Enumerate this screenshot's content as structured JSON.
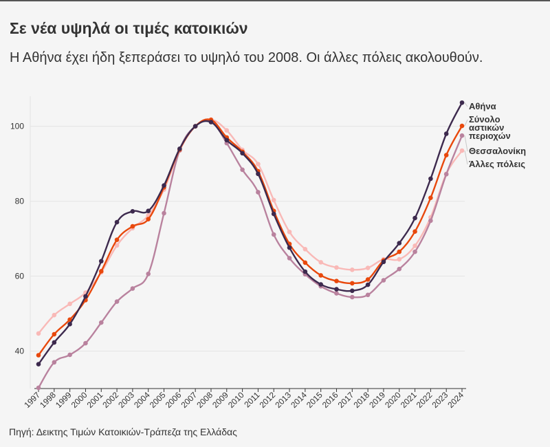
{
  "title": "Σε νέα υψηλά οι τιμές κατοικιών",
  "subtitle": "Η Αθήνα έχει ήδη ξεπεράσει το υψηλό του 2008. Οι άλλες πόλεις ακολουθούν.",
  "source": "Πηγή: Δεικτης Τιμών Κατοικιών-Τράπεζα της Ελλάδας",
  "chart_data": {
    "type": "line",
    "title": "Σε νέα υψηλά οι τιμές κατοικιών",
    "subtitle": "Η Αθήνα έχει ήδη ξεπεράσει το υψηλό του 2008. Οι άλλες πόλεις ακολουθούν.",
    "xlabel": "",
    "ylabel": "",
    "ylim": [
      30,
      108
    ],
    "yticks": [
      40,
      60,
      80,
      100
    ],
    "grid": true,
    "legend": "direct labels at right end",
    "x": [
      "1997",
      "1998",
      "1999",
      "2000",
      "2001",
      "2002",
      "2003",
      "2004",
      "2005",
      "2006",
      "2007",
      "2008",
      "2009",
      "2010",
      "2011",
      "2012",
      "2013",
      "2014",
      "2015",
      "2016",
      "2017",
      "2018",
      "2019",
      "2020",
      "2021",
      "2022",
      "2023",
      "2024"
    ],
    "series": [
      {
        "name": "Αθήνα",
        "color": "#3d2a4e",
        "values": [
          36.5,
          42.3,
          47.2,
          54.6,
          64.0,
          74.4,
          77.3,
          77.4,
          84.2,
          94.0,
          100.0,
          101.1,
          96.3,
          92.8,
          87.3,
          76.6,
          67.6,
          61.2,
          57.8,
          56.5,
          56.1,
          57.7,
          63.8,
          68.8,
          75.5,
          86.0,
          98.0,
          106.3
        ]
      },
      {
        "name": "Σύνολο αστικών περιοχών",
        "color": "#e8480c",
        "values": [
          38.9,
          44.5,
          48.4,
          53.6,
          61.3,
          69.7,
          73.3,
          75.2,
          83.7,
          93.8,
          100.0,
          101.7,
          97.0,
          93.2,
          88.0,
          77.4,
          68.6,
          63.6,
          60.2,
          58.7,
          58.1,
          59.1,
          64.2,
          66.5,
          71.9,
          80.9,
          92.3,
          100.1
        ]
      },
      {
        "name": "Θεσσαλονίκη",
        "color": "#b9829e",
        "values": [
          30.2,
          37.0,
          39.0,
          42.1,
          47.6,
          53.2,
          56.7,
          60.6,
          76.8,
          93.6,
          100.0,
          101.4,
          95.5,
          88.4,
          82.4,
          71.1,
          64.8,
          60.5,
          57.3,
          55.4,
          54.4,
          55.0,
          58.9,
          61.9,
          66.5,
          74.8,
          87.2,
          97.5
        ]
      },
      {
        "name": "Άλλες πόλεις",
        "color": "#f9b9b7",
        "values": [
          44.7,
          49.6,
          52.6,
          55.6,
          61.0,
          68.2,
          72.8,
          76.2,
          83.1,
          93.5,
          100.0,
          101.8,
          98.9,
          93.7,
          89.9,
          80.3,
          71.8,
          67.2,
          63.7,
          62.3,
          61.7,
          62.2,
          64.5,
          64.5,
          68.1,
          75.7,
          87.3,
          93.5
        ]
      }
    ]
  }
}
